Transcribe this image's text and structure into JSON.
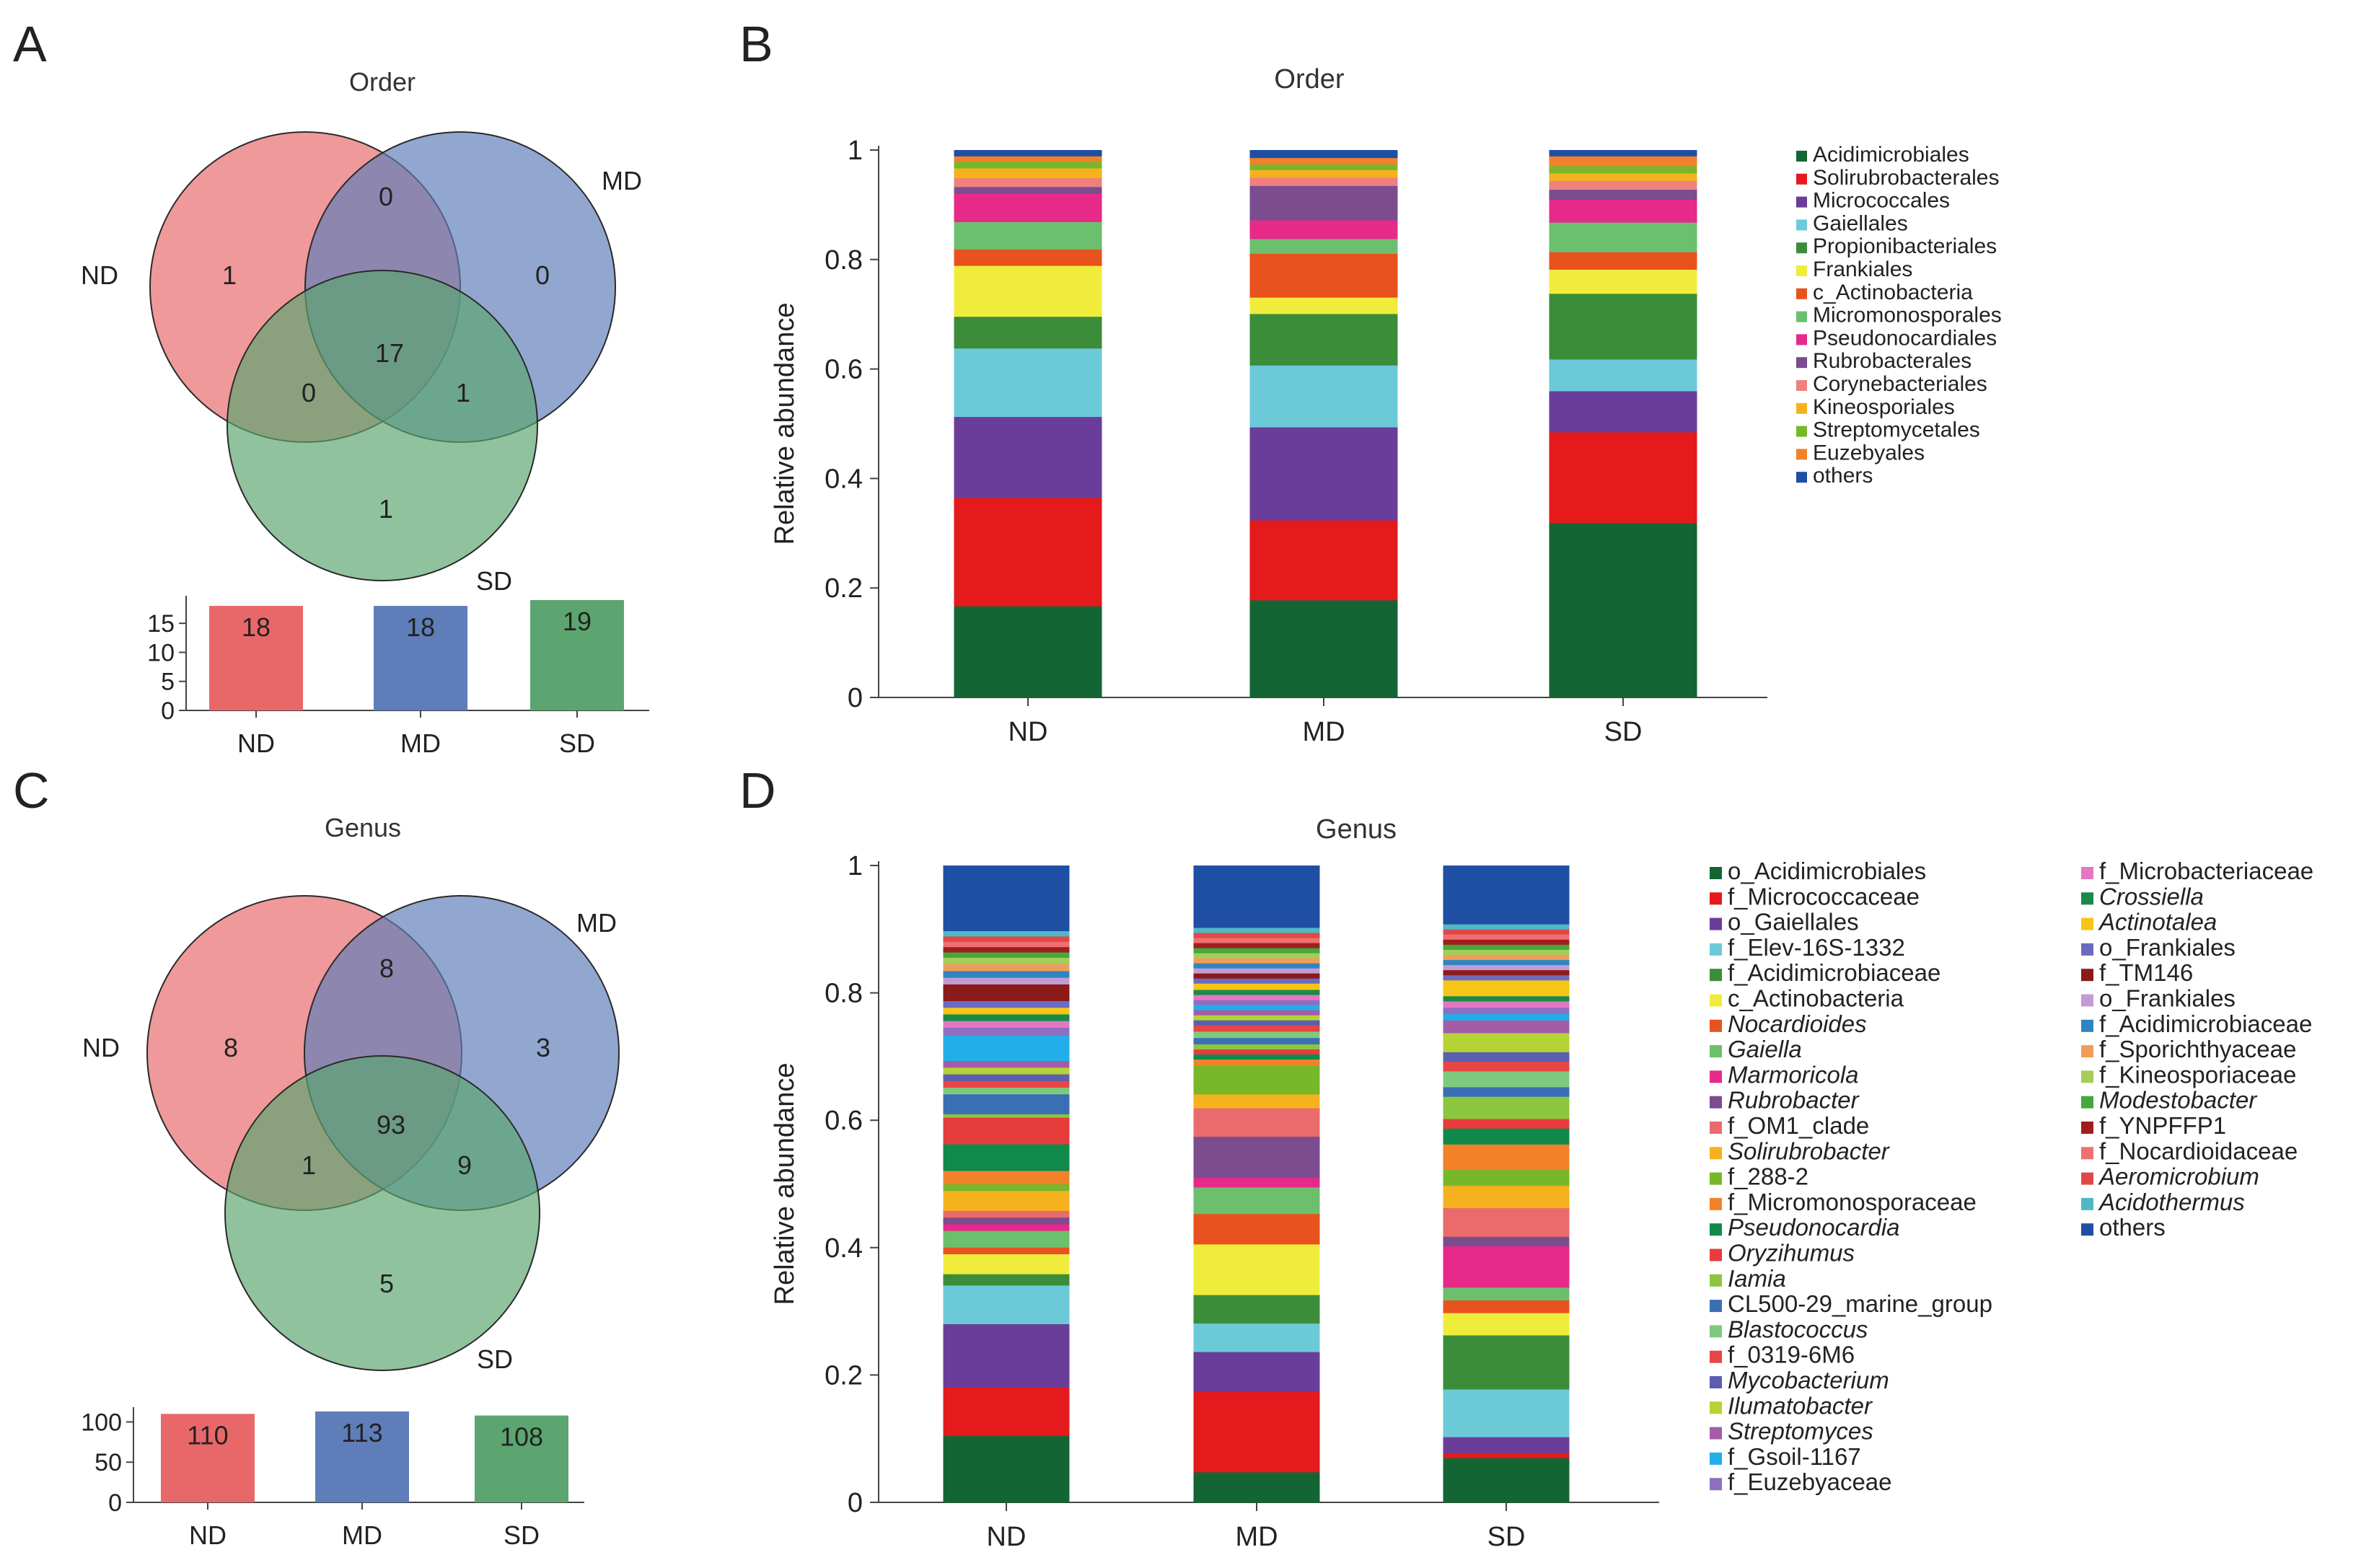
{
  "panels": {
    "A": {
      "letter": "A",
      "title": "Order"
    },
    "B": {
      "letter": "B",
      "title": "Order"
    },
    "C": {
      "letter": "C",
      "title": "Genus"
    },
    "D": {
      "letter": "D",
      "title": "Genus"
    }
  },
  "colors": {
    "ND": "#e8686a",
    "MD": "#5f7db9",
    "SD": "#5ca570"
  },
  "chart_data": [
    {
      "panel": "A",
      "type": "venn",
      "title": "Order",
      "sets": [
        "ND",
        "MD",
        "SD"
      ],
      "regions": {
        "ND_only": 1,
        "MD_only": 0,
        "SD_only": 1,
        "ND_MD": 0,
        "ND_SD": 0,
        "MD_SD": 1,
        "ND_MD_SD": 17
      },
      "totals": {
        "categories": [
          "ND",
          "MD",
          "SD"
        ],
        "values": [
          18,
          18,
          19
        ],
        "yticks": [
          0,
          5,
          10,
          15
        ],
        "ylim": [
          0,
          19
        ]
      }
    },
    {
      "panel": "B",
      "type": "bar",
      "stacked": true,
      "title": "Order",
      "ylabel": "Relative abundance",
      "ylim": [
        0,
        1
      ],
      "yticks": [
        0,
        0.2,
        0.4,
        0.6,
        0.8,
        1
      ],
      "ytick_labels": [
        "0",
        "0.2",
        "0.4",
        "0.6",
        "0.8",
        "1"
      ],
      "categories": [
        "ND",
        "MD",
        "SD"
      ],
      "series": [
        {
          "name": "Acidimicrobiales",
          "color": "#146534",
          "values": [
            0.167,
            0.178,
            0.319
          ]
        },
        {
          "name": "Solirubrobacterales",
          "color": "#e41a1c",
          "values": [
            0.198,
            0.146,
            0.166
          ]
        },
        {
          "name": "Micrococcales",
          "color": "#6a3d9a",
          "values": [
            0.148,
            0.17,
            0.075
          ]
        },
        {
          "name": "Gaiellales",
          "color": "#6ccad8",
          "values": [
            0.125,
            0.113,
            0.058
          ]
        },
        {
          "name": "Propionibacteriales",
          "color": "#3c8d3a",
          "values": [
            0.058,
            0.094,
            0.12
          ]
        },
        {
          "name": "Frankiales",
          "color": "#f0ec3c",
          "values": [
            0.093,
            0.03,
            0.044
          ]
        },
        {
          "name": "c_Actinobacteria",
          "color": "#e8521e",
          "values": [
            0.03,
            0.08,
            0.032
          ]
        },
        {
          "name": "Micromonosporales",
          "color": "#6cbf6c",
          "values": [
            0.05,
            0.027,
            0.054
          ]
        },
        {
          "name": "Pseudonocardiales",
          "color": "#e7298a",
          "values": [
            0.052,
            0.034,
            0.042
          ]
        },
        {
          "name": "Rubrobacterales",
          "color": "#7b4c8e",
          "values": [
            0.012,
            0.063,
            0.018
          ]
        },
        {
          "name": "Corynebacteriales",
          "color": "#f08080",
          "values": [
            0.016,
            0.015,
            0.016
          ]
        },
        {
          "name": "Kineosporiales",
          "color": "#f5b21e",
          "values": [
            0.018,
            0.014,
            0.014
          ]
        },
        {
          "name": "Streptomycetales",
          "color": "#76b82a",
          "values": [
            0.012,
            0.01,
            0.013
          ]
        },
        {
          "name": "Euzebyales",
          "color": "#f2822a",
          "values": [
            0.01,
            0.012,
            0.018
          ]
        },
        {
          "name": "others",
          "color": "#1f4fa3",
          "values": [
            0.011,
            0.014,
            0.011
          ]
        }
      ]
    },
    {
      "panel": "C",
      "type": "venn",
      "title": "Genus",
      "sets": [
        "ND",
        "MD",
        "SD"
      ],
      "regions": {
        "ND_only": 8,
        "MD_only": 3,
        "SD_only": 5,
        "ND_MD": 8,
        "ND_SD": 1,
        "MD_SD": 9,
        "ND_MD_SD": 93
      },
      "totals": {
        "categories": [
          "ND",
          "MD",
          "SD"
        ],
        "values": [
          110,
          113,
          108
        ],
        "yticks": [
          0,
          50,
          100
        ],
        "ylim": [
          0,
          113
        ]
      }
    },
    {
      "panel": "D",
      "type": "bar",
      "stacked": true,
      "title": "Genus",
      "ylabel": "Relative abundance",
      "ylim": [
        0,
        1
      ],
      "yticks": [
        0,
        0.2,
        0.4,
        0.6,
        0.8,
        1
      ],
      "ytick_labels": [
        "0",
        "0.2",
        "0.4",
        "0.6",
        "0.8",
        "1"
      ],
      "categories": [
        "ND",
        "MD",
        "SD"
      ],
      "series": [
        {
          "name": "o_Acidimicrobiales",
          "italic": false,
          "color": "#146534",
          "values": [
            0.1,
            0.048,
            0.07
          ]
        },
        {
          "name": "f_Micrococcaceae",
          "italic": false,
          "color": "#e41a1c",
          "values": [
            0.073,
            0.127,
            0.008
          ]
        },
        {
          "name": "o_Gaiellales",
          "italic": false,
          "color": "#6a3d9a",
          "values": [
            0.095,
            0.063,
            0.025
          ]
        },
        {
          "name": "f_Elev-16S-1332",
          "italic": false,
          "color": "#6ccad8",
          "values": [
            0.058,
            0.045,
            0.075
          ]
        },
        {
          "name": "f_Acidimicrobiaceae",
          "italic": false,
          "color": "#3c8d3a",
          "values": [
            0.017,
            0.045,
            0.085
          ]
        },
        {
          "name": "c_Actinobacteria",
          "italic": false,
          "color": "#f0ec3c",
          "values": [
            0.03,
            0.08,
            0.035
          ]
        },
        {
          "name": "Nocardioides",
          "italic": true,
          "color": "#e8521e",
          "values": [
            0.01,
            0.048,
            0.02
          ]
        },
        {
          "name": "Gaiella",
          "italic": true,
          "color": "#6cbf6c",
          "values": [
            0.025,
            0.042,
            0.02
          ]
        },
        {
          "name": "Marmoricola",
          "italic": true,
          "color": "#e7298a",
          "values": [
            0.01,
            0.015,
            0.065
          ]
        },
        {
          "name": "Rubrobacter",
          "italic": true,
          "color": "#7b4c8e",
          "values": [
            0.01,
            0.065,
            0.015
          ]
        },
        {
          "name": "f_OM1_clade",
          "italic": false,
          "color": "#ea6b6b",
          "values": [
            0.01,
            0.045,
            0.045
          ]
        },
        {
          "name": "Solirubrobacter",
          "italic": true,
          "color": "#f5b21e",
          "values": [
            0.03,
            0.022,
            0.035
          ]
        },
        {
          "name": "f_288-2",
          "italic": false,
          "color": "#76b82a",
          "values": [
            0.01,
            0.045,
            0.025
          ]
        },
        {
          "name": "f_Micromonosporaceae",
          "italic": false,
          "color": "#f2822a",
          "values": [
            0.02,
            0.01,
            0.04
          ]
        },
        {
          "name": "Pseudonocardia",
          "italic": true,
          "color": "#0f8a4a",
          "values": [
            0.04,
            0.008,
            0.025
          ]
        },
        {
          "name": "Oryzihumus",
          "italic": true,
          "color": "#e63c3c",
          "values": [
            0.04,
            0.008,
            0.015
          ]
        },
        {
          "name": "Iamia",
          "italic": true,
          "color": "#8cc63f",
          "values": [
            0.005,
            0.008,
            0.035
          ]
        },
        {
          "name": "CL500-29_marine_group",
          "italic": false,
          "color": "#3a6fb5",
          "values": [
            0.03,
            0.01,
            0.015
          ]
        },
        {
          "name": "Blastococcus",
          "italic": true,
          "color": "#7fc97f",
          "values": [
            0.01,
            0.01,
            0.025
          ]
        },
        {
          "name": "f_0319-6M6",
          "italic": false,
          "color": "#e84545",
          "values": [
            0.01,
            0.01,
            0.015
          ]
        },
        {
          "name": "Mycobacterium",
          "italic": true,
          "color": "#5b5fb0",
          "values": [
            0.01,
            0.008,
            0.015
          ]
        },
        {
          "name": "Ilumatobacter",
          "italic": true,
          "color": "#b5d334",
          "values": [
            0.01,
            0.008,
            0.03
          ]
        },
        {
          "name": "Streptomyces",
          "italic": true,
          "color": "#a35ca8",
          "values": [
            0.01,
            0.008,
            0.02
          ]
        },
        {
          "name": "f_Gsoil-1167",
          "italic": false,
          "color": "#22aee8",
          "values": [
            0.038,
            0.008,
            0.01
          ]
        },
        {
          "name": "f_Euzebyaceae",
          "italic": false,
          "color": "#8e6fc0",
          "values": [
            0.012,
            0.008,
            0.01
          ]
        },
        {
          "name": "f_Microbacteriaceae",
          "italic": false,
          "color": "#e377c2",
          "values": [
            0.01,
            0.008,
            0.01
          ]
        },
        {
          "name": "Crossiella",
          "italic": true,
          "color": "#1a8a4a",
          "values": [
            0.01,
            0.008,
            0.008
          ]
        },
        {
          "name": "Actinotalea",
          "italic": true,
          "color": "#f5c518",
          "values": [
            0.01,
            0.01,
            0.025
          ]
        },
        {
          "name": "o_Frankiales",
          "italic": false,
          "color": "#6b6bc0",
          "values": [
            0.01,
            0.008,
            0.008
          ]
        },
        {
          "name": "f_TM146",
          "italic": false,
          "color": "#8b1a1a",
          "values": [
            0.025,
            0.008,
            0.008
          ]
        },
        {
          "name": "o_Frankiales",
          "italic": false,
          "color": "#c39bd3",
          "values": [
            0.01,
            0.008,
            0.008
          ]
        },
        {
          "name": "f_Acidimicrobiaceae",
          "italic": false,
          "color": "#2e86c1",
          "values": [
            0.01,
            0.008,
            0.008
          ]
        },
        {
          "name": "f_Sporichthyaceae",
          "italic": false,
          "color": "#f39c5a",
          "values": [
            0.01,
            0.008,
            0.008
          ]
        },
        {
          "name": "f_Kineosporiaceae",
          "italic": false,
          "color": "#a4cd5a",
          "values": [
            0.01,
            0.008,
            0.008
          ]
        },
        {
          "name": "Modestobacter",
          "italic": true,
          "color": "#45a83a",
          "values": [
            0.008,
            0.008,
            0.008
          ]
        },
        {
          "name": "f_YNPFFP1",
          "italic": false,
          "color": "#a01e1e",
          "values": [
            0.008,
            0.008,
            0.008
          ]
        },
        {
          "name": "f_Nocardioidaceae",
          "italic": false,
          "color": "#f07070",
          "values": [
            0.008,
            0.008,
            0.008
          ]
        },
        {
          "name": "Aeromicrobium",
          "italic": true,
          "color": "#e04848",
          "values": [
            0.008,
            0.008,
            0.008
          ]
        },
        {
          "name": "Acidothermus",
          "italic": true,
          "color": "#4fb8c4",
          "values": [
            0.008,
            0.008,
            0.008
          ]
        },
        {
          "name": "others",
          "italic": false,
          "color": "#1f4fa3",
          "values": [
            0.098,
            0.098,
            0.092
          ]
        }
      ]
    }
  ]
}
